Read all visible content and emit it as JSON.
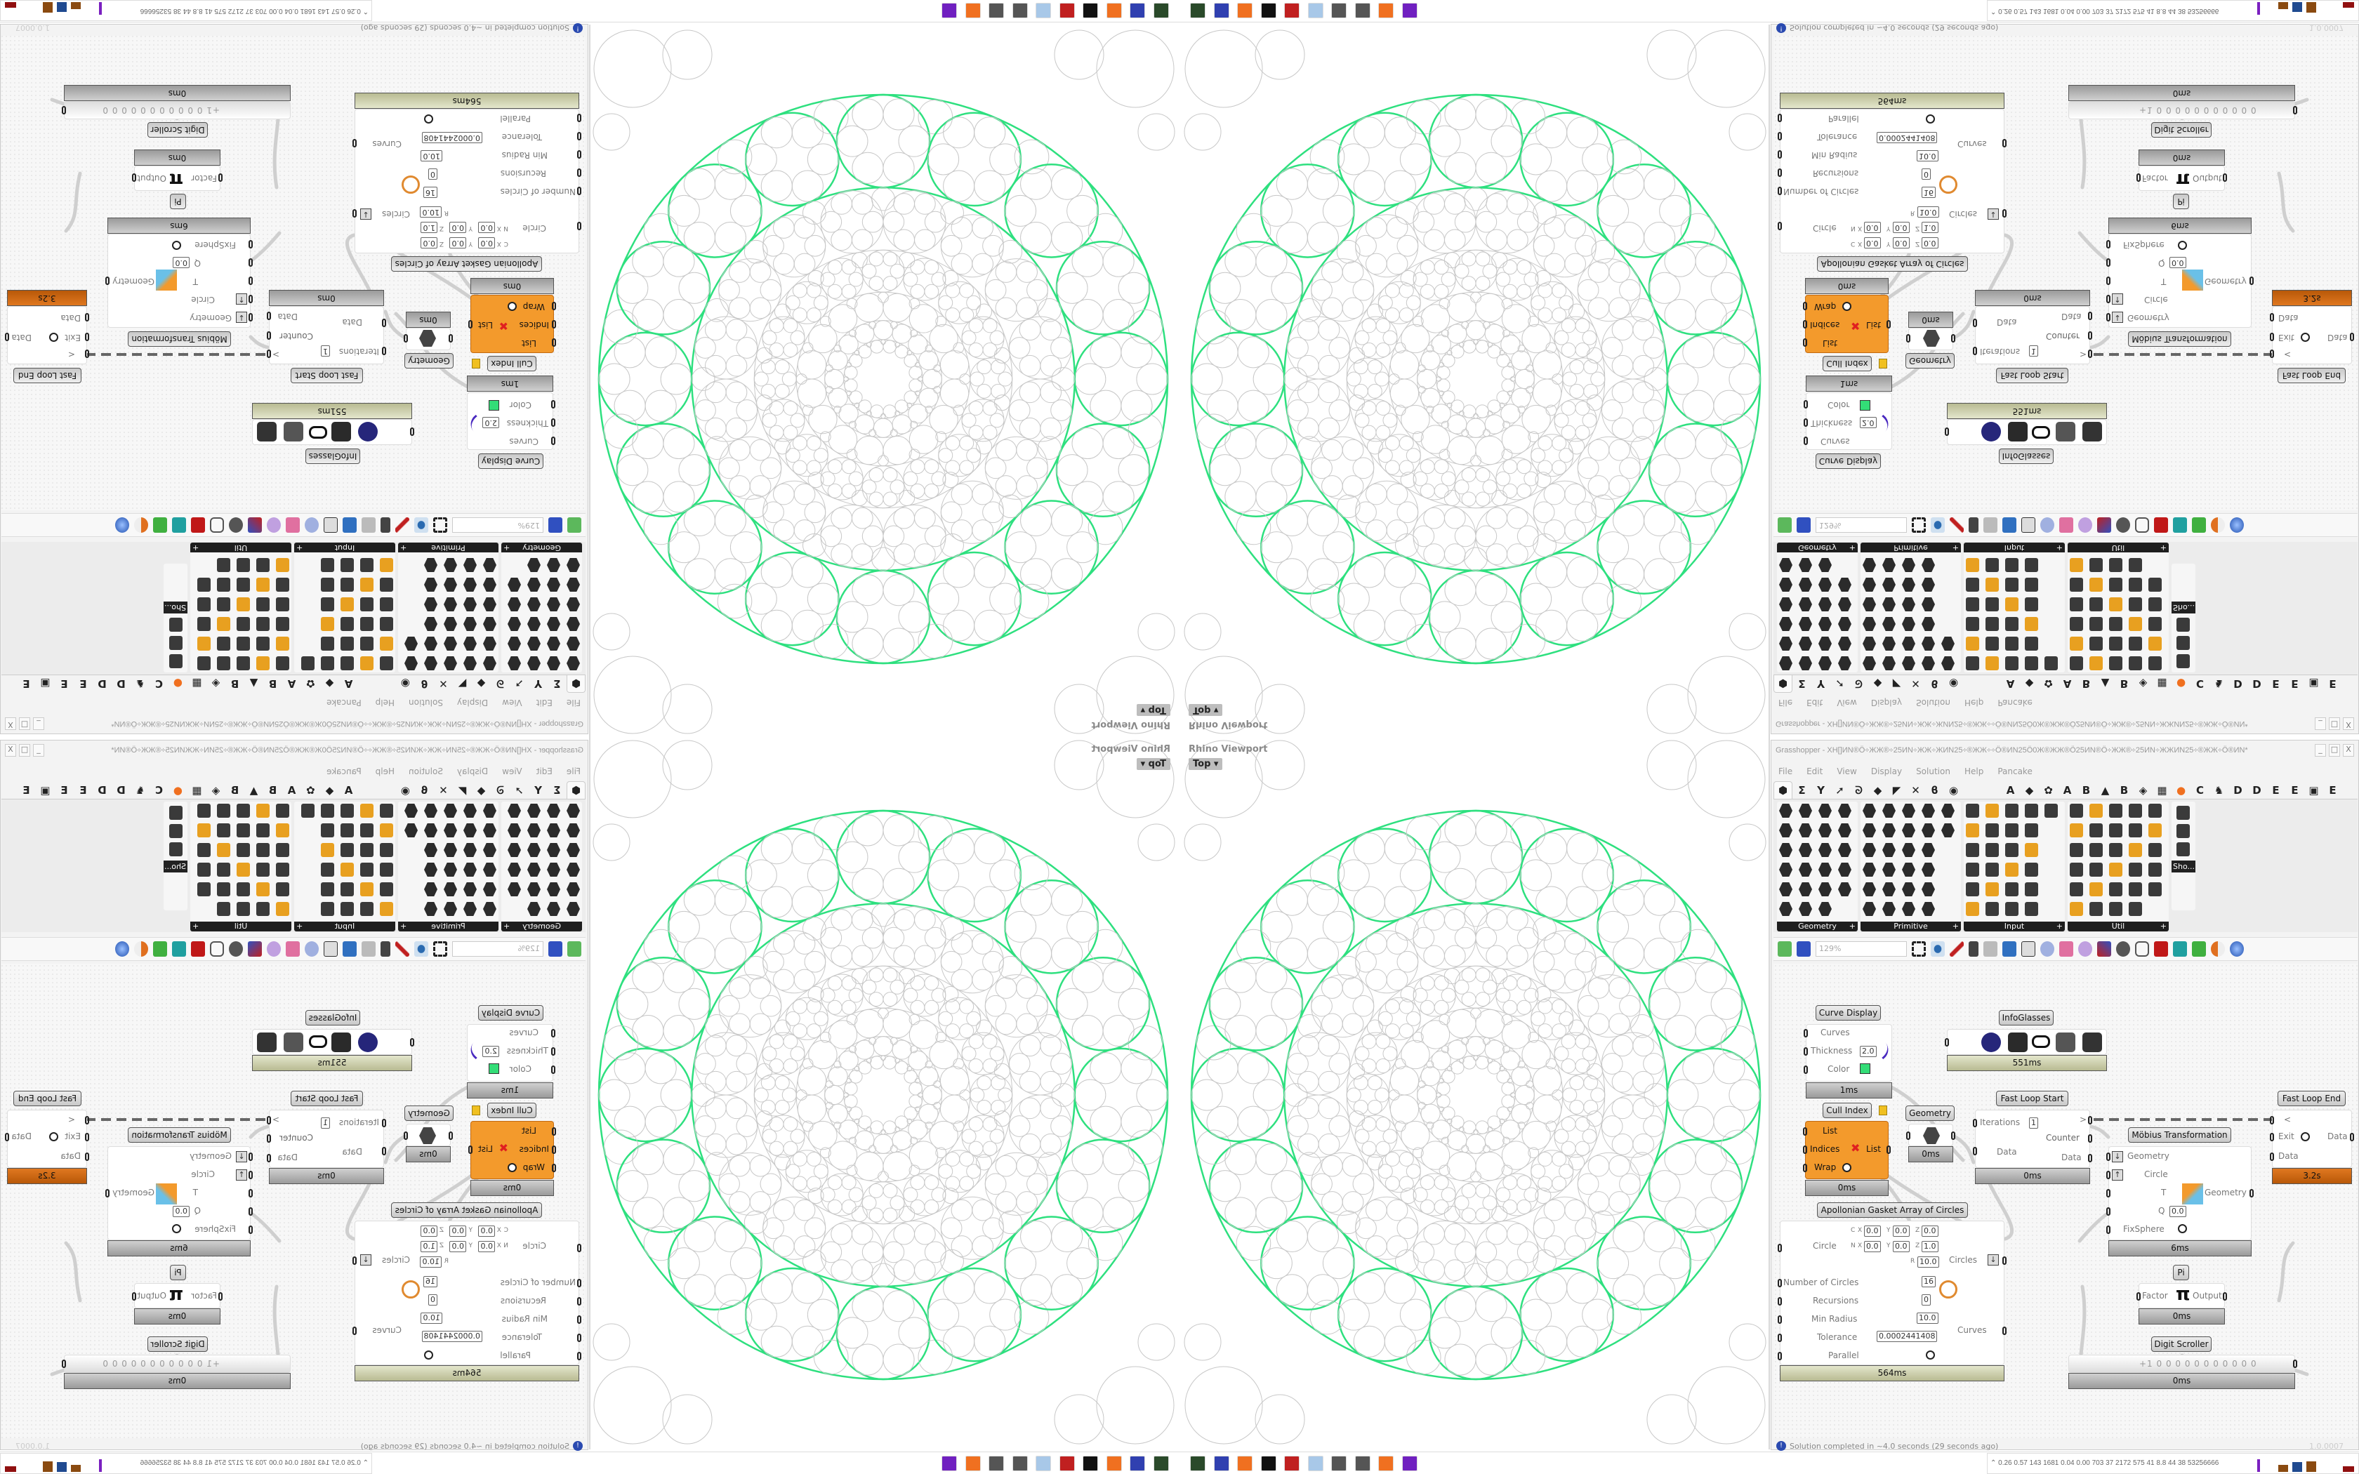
{
  "viewport": {
    "title": "Rhino Viewport",
    "view": "Top",
    "view_dropdown": "▾"
  },
  "grasshopper": {
    "title": "Grasshopper - XH[]ИN®Ö÷ЖЖ®÷25ИN÷ЖЖ÷ЖИN25÷®ЖЖ÷÷Ö®ИN25Ö0Ж®ЖЖ®Ö25ИN®Ö÷ЖЖ®÷25ИN÷ЖЖИN25÷®ЖЖ÷Ö®ИN*",
    "window_buttons": [
      "_",
      "□",
      "X"
    ],
    "menu": [
      "File",
      "Edit",
      "View",
      "Display",
      "Solution",
      "Help",
      "Pancake"
    ],
    "tabs_left": [
      {
        "icon": "params-hex-icon",
        "glyph": "⬢"
      },
      {
        "icon": "maths-sigma-icon",
        "glyph": "Σ"
      },
      {
        "icon": "sets-icon",
        "glyph": "Y"
      },
      {
        "icon": "vector-icon",
        "glyph": "➚"
      },
      {
        "icon": "curve-icon",
        "glyph": "ᘐ"
      },
      {
        "icon": "surface-icon",
        "glyph": "◆"
      },
      {
        "icon": "mesh-icon",
        "glyph": "◤"
      },
      {
        "icon": "intersect-icon",
        "glyph": "✕"
      },
      {
        "icon": "transform-icon",
        "glyph": "ϐ"
      },
      {
        "icon": "display-icon",
        "glyph": "◉"
      }
    ],
    "tabs_right": [
      {
        "icon": "plugin-a-icon",
        "glyph": "A"
      },
      {
        "icon": "crystal-icon",
        "glyph": "◆"
      },
      {
        "icon": "flower-icon",
        "glyph": "✿"
      },
      {
        "icon": "plugin-a2-icon",
        "glyph": "A"
      },
      {
        "icon": "plugin-b-icon",
        "glyph": "B"
      },
      {
        "icon": "mountain-icon",
        "glyph": "▲"
      },
      {
        "icon": "plugin-b2-icon",
        "glyph": "B"
      },
      {
        "icon": "shield-icon",
        "glyph": "◈"
      },
      {
        "icon": "grid-icon",
        "glyph": "▦"
      },
      {
        "icon": "orange-dot-icon",
        "glyph": "●"
      },
      {
        "icon": "plugin-c-icon",
        "glyph": "C"
      },
      {
        "icon": "rooster-icon",
        "glyph": "♞"
      },
      {
        "icon": "plugin-d-icon",
        "glyph": "D"
      },
      {
        "icon": "plugin-d2-icon",
        "glyph": "D"
      },
      {
        "icon": "plugin-e-icon",
        "glyph": "E"
      },
      {
        "icon": "plugin-e2-icon",
        "glyph": "E"
      },
      {
        "icon": "dotted-box-icon",
        "glyph": "▣"
      },
      {
        "icon": "plugin-e3-icon",
        "glyph": "E"
      }
    ],
    "panels": [
      {
        "label": "Geometry",
        "expand": "+"
      },
      {
        "label": "Primitive",
        "expand": "+"
      },
      {
        "label": "Input",
        "expand": "+"
      },
      {
        "label": "Util",
        "expand": "+"
      }
    ],
    "overflow_label": "Sho...",
    "zoom": "129%"
  },
  "components": {
    "curve_display": {
      "label": "Curve Display",
      "inputs": [
        "Curves",
        "Thickness",
        "Color"
      ],
      "thickness": "2.0",
      "color": "#33dd77",
      "time": "1ms"
    },
    "infoglasses": {
      "label": "InfoGlasses",
      "time": "551ms"
    },
    "fast_loop_start": {
      "label": "Fast Loop Start",
      "iterations_label": "Iterations",
      "iterations": "1",
      "data_in": "Data",
      "start": ">",
      "counter": "Counter",
      "data_out": "Data",
      "time": "0ms"
    },
    "fast_loop_end": {
      "label": "Fast Loop End",
      "end": "<",
      "exit": "Exit",
      "data_in": "Data",
      "data_out": "Data",
      "time": "3.2s"
    },
    "cull_index": {
      "label": "Cull Index",
      "list_in": "List",
      "indices": "Indices",
      "wrap": "Wrap",
      "list_out": "List",
      "time": "0ms"
    },
    "geometry": {
      "label": "Geometry",
      "time": "0ms"
    },
    "mobius": {
      "label": "Möbius Transformation",
      "inputs": [
        "Geometry",
        "Circle",
        "T",
        "Q",
        "FixSphere"
      ],
      "q": "0.0",
      "output": "Geometry",
      "time": "6ms"
    },
    "apollonian": {
      "label": "Apollonian Gasket Array of Circles",
      "c_label": "C",
      "n_label": "N",
      "circle_label": "Circle",
      "c": {
        "x": "0.0",
        "y": "0.0",
        "z": "0.0"
      },
      "n": {
        "x": "0.0",
        "y": "0.0",
        "z": "1.0"
      },
      "axis": [
        "X",
        "Y",
        "Z"
      ],
      "r_label": "R",
      "r": "10.0",
      "number_label": "Number of Circles",
      "number": "16",
      "recursions_label": "Recursions",
      "recursions": "0",
      "min_radius_label": "Min Radius",
      "min_radius": "10.0",
      "tolerance_label": "Tolerance",
      "tolerance": "0.0002441408",
      "parallel_label": "Parallel",
      "out_circles": "Circles",
      "out_curves": "Curves",
      "time": "564ms"
    },
    "pi": {
      "label": "Pi",
      "factor": "Factor",
      "symbol": "π",
      "output": "Output",
      "time": "0ms"
    },
    "digit_scroller": {
      "label": "Digit Scroller",
      "value": "+1 0 0 0 0 0 0 0 0 0 0 0",
      "time": "0ms"
    }
  },
  "status": {
    "message": "Solution completed in ~4.0 seconds (29 seconds ago)",
    "version": "1.0.0007"
  },
  "taskbar": {
    "apps": [
      "terminal-green-icon",
      "floppy-64-icon",
      "firefox-icon",
      "rhino-icon",
      "red-app-icon",
      "notepad-icon",
      "terminal-icon",
      "terminal-icon",
      "firefox-icon",
      "purple-app-icon"
    ],
    "stats": "⌃  0.26 0.57 143 1681 0.04 0.00 703  37  2172 575  41  8.8  44  38  53256666"
  },
  "colors": {
    "green_circles": "#2ee07f",
    "grey_circles": "#c8c8c8",
    "component_orange": "#f39a2c",
    "loop_end_bar": "#d06a10"
  }
}
